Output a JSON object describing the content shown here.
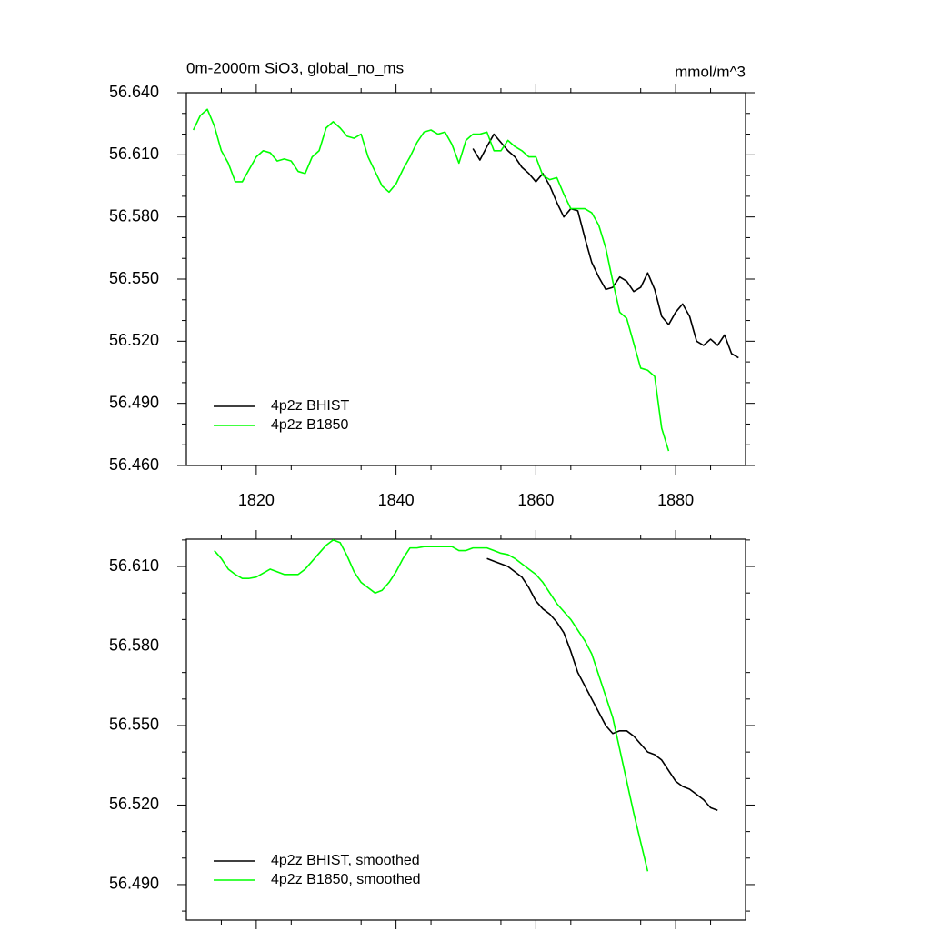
{
  "chart_data": [
    {
      "type": "line",
      "title": "0m-2000m SiO3, global_no_ms",
      "units": "mmol/m^3",
      "xlim": [
        1810,
        1890
      ],
      "xticks": [
        1820,
        1840,
        1860,
        1880
      ],
      "show_xtick_labels": true,
      "minor_xticks": [
        1815,
        1825,
        1835,
        1845,
        1855,
        1865,
        1875,
        1885
      ],
      "ylim": [
        56.46,
        56.64
      ],
      "yticks": [
        {
          "value": 56.46,
          "label": "56.460"
        },
        {
          "value": 56.49,
          "label": "56.490"
        },
        {
          "value": 56.52,
          "label": "56.520"
        },
        {
          "value": 56.55,
          "label": "56.550"
        },
        {
          "value": 56.58,
          "label": "56.580"
        },
        {
          "value": 56.61,
          "label": "56.610"
        },
        {
          "value": 56.64,
          "label": "56.640"
        }
      ],
      "minor_yticks": [
        56.47,
        56.48,
        56.5,
        56.51,
        56.53,
        56.54,
        56.56,
        56.57,
        56.59,
        56.6,
        56.62,
        56.63
      ],
      "legend": "lower left",
      "series": [
        {
          "name": "4p2z BHIST",
          "color": "#000000",
          "x": [
            1851,
            1852,
            1853,
            1854,
            1855,
            1856,
            1857,
            1858,
            1859,
            1860,
            1861,
            1862,
            1863,
            1864,
            1865,
            1866,
            1867,
            1868,
            1869,
            1870,
            1871,
            1872,
            1873,
            1874,
            1875,
            1876,
            1877,
            1878,
            1879,
            1880,
            1881,
            1882,
            1883,
            1884,
            1885,
            1886,
            1887,
            1888,
            1889
          ],
          "values": [
            56.613,
            56.6075,
            56.614,
            56.62,
            56.616,
            56.612,
            56.609,
            56.604,
            56.601,
            56.597,
            56.601,
            56.595,
            56.587,
            56.58,
            56.584,
            56.583,
            56.57,
            56.558,
            56.551,
            56.545,
            56.546,
            56.551,
            56.549,
            56.544,
            56.546,
            56.553,
            56.545,
            56.532,
            56.528,
            56.534,
            56.538,
            56.532,
            56.52,
            56.518,
            56.521,
            56.518,
            56.523,
            56.514,
            56.512
          ]
        },
        {
          "name": "4p2z B1850",
          "color": "#00ff00",
          "x": [
            1811,
            1812,
            1813,
            1814,
            1815,
            1816,
            1817,
            1818,
            1819,
            1820,
            1821,
            1822,
            1823,
            1824,
            1825,
            1826,
            1827,
            1828,
            1829,
            1830,
            1831,
            1832,
            1833,
            1834,
            1835,
            1836,
            1837,
            1838,
            1839,
            1840,
            1841,
            1842,
            1843,
            1844,
            1845,
            1846,
            1847,
            1848,
            1849,
            1850,
            1851,
            1852,
            1853,
            1854,
            1855,
            1856,
            1857,
            1858,
            1859,
            1860,
            1861,
            1862,
            1863,
            1864,
            1865,
            1866,
            1867,
            1868,
            1869,
            1870,
            1871,
            1872,
            1873,
            1874,
            1875,
            1876,
            1877,
            1878,
            1879
          ],
          "values": [
            56.622,
            56.629,
            56.632,
            56.624,
            56.612,
            56.606,
            56.597,
            56.597,
            56.603,
            56.609,
            56.612,
            56.611,
            56.607,
            56.608,
            56.607,
            56.602,
            56.601,
            56.609,
            56.612,
            56.623,
            56.626,
            56.623,
            56.619,
            56.618,
            56.62,
            56.609,
            56.602,
            56.595,
            56.592,
            56.596,
            56.603,
            56.609,
            56.616,
            56.621,
            56.622,
            56.62,
            56.621,
            56.615,
            56.606,
            56.617,
            56.62,
            56.62,
            56.621,
            56.612,
            56.612,
            56.617,
            56.614,
            56.612,
            56.609,
            56.609,
            56.6,
            56.598,
            56.599,
            56.591,
            56.584,
            56.584,
            56.584,
            56.582,
            56.576,
            56.565,
            56.549,
            56.534,
            56.531,
            56.519,
            56.507,
            56.506,
            56.503,
            56.478,
            56.467
          ]
        }
      ]
    },
    {
      "type": "line",
      "xlim": [
        1810,
        1890
      ],
      "xticks": [
        1820,
        1840,
        1860,
        1880
      ],
      "show_xtick_labels": false,
      "minor_xticks": [
        1815,
        1825,
        1835,
        1845,
        1855,
        1865,
        1875,
        1885
      ],
      "ylim": [
        56.4766,
        56.6203
      ],
      "yticks": [
        {
          "value": 56.49,
          "label": "56.490"
        },
        {
          "value": 56.52,
          "label": "56.520"
        },
        {
          "value": 56.55,
          "label": "56.550"
        },
        {
          "value": 56.58,
          "label": "56.580"
        },
        {
          "value": 56.61,
          "label": "56.610"
        }
      ],
      "minor_yticks": [
        56.48,
        56.5,
        56.51,
        56.53,
        56.54,
        56.56,
        56.57,
        56.59,
        56.6,
        56.62
      ],
      "legend": "lower left",
      "series": [
        {
          "name": "4p2z BHIST, smoothed",
          "color": "#000000",
          "x": [
            1853,
            1854,
            1855,
            1856,
            1857,
            1858,
            1859,
            1860,
            1861,
            1862,
            1863,
            1864,
            1865,
            1866,
            1867,
            1868,
            1869,
            1870,
            1871,
            1872,
            1873,
            1874,
            1875,
            1876,
            1877,
            1878,
            1879,
            1880,
            1881,
            1882,
            1883,
            1884,
            1885,
            1886
          ],
          "values": [
            56.613,
            56.612,
            56.611,
            56.61,
            56.608,
            56.606,
            56.602,
            56.597,
            56.594,
            56.592,
            56.589,
            56.585,
            56.578,
            56.57,
            56.565,
            56.56,
            56.555,
            56.55,
            56.547,
            56.548,
            56.548,
            56.546,
            56.543,
            56.54,
            56.539,
            56.537,
            56.533,
            56.529,
            56.527,
            56.526,
            56.524,
            56.522,
            56.519,
            56.518
          ]
        },
        {
          "name": "4p2z B1850, smoothed",
          "color": "#00ff00",
          "x": [
            1814,
            1815,
            1816,
            1817,
            1818,
            1819,
            1820,
            1821,
            1822,
            1823,
            1824,
            1825,
            1826,
            1827,
            1828,
            1829,
            1830,
            1831,
            1832,
            1833,
            1834,
            1835,
            1836,
            1837,
            1838,
            1839,
            1840,
            1841,
            1842,
            1843,
            1844,
            1845,
            1846,
            1847,
            1848,
            1849,
            1850,
            1851,
            1852,
            1853,
            1854,
            1855,
            1856,
            1857,
            1858,
            1859,
            1860,
            1861,
            1862,
            1863,
            1864,
            1865,
            1866,
            1867,
            1868,
            1869,
            1870,
            1871,
            1872,
            1873,
            1874,
            1875,
            1876
          ],
          "values": [
            56.616,
            56.613,
            56.609,
            56.607,
            56.6055,
            56.6055,
            56.606,
            56.6075,
            56.609,
            56.608,
            56.607,
            56.607,
            56.607,
            56.609,
            56.612,
            56.615,
            56.618,
            56.62,
            56.619,
            56.614,
            56.608,
            56.604,
            56.602,
            56.6,
            56.601,
            56.604,
            56.608,
            56.613,
            56.617,
            56.617,
            56.6175,
            56.6175,
            56.6175,
            56.6175,
            56.6175,
            56.616,
            56.616,
            56.617,
            56.617,
            56.617,
            56.616,
            56.615,
            56.6145,
            56.613,
            56.611,
            56.609,
            56.607,
            56.604,
            56.6,
            56.596,
            56.593,
            56.59,
            56.586,
            56.582,
            56.577,
            56.569,
            56.561,
            56.553,
            56.541,
            56.529,
            56.517,
            56.506,
            56.495
          ]
        }
      ]
    }
  ]
}
